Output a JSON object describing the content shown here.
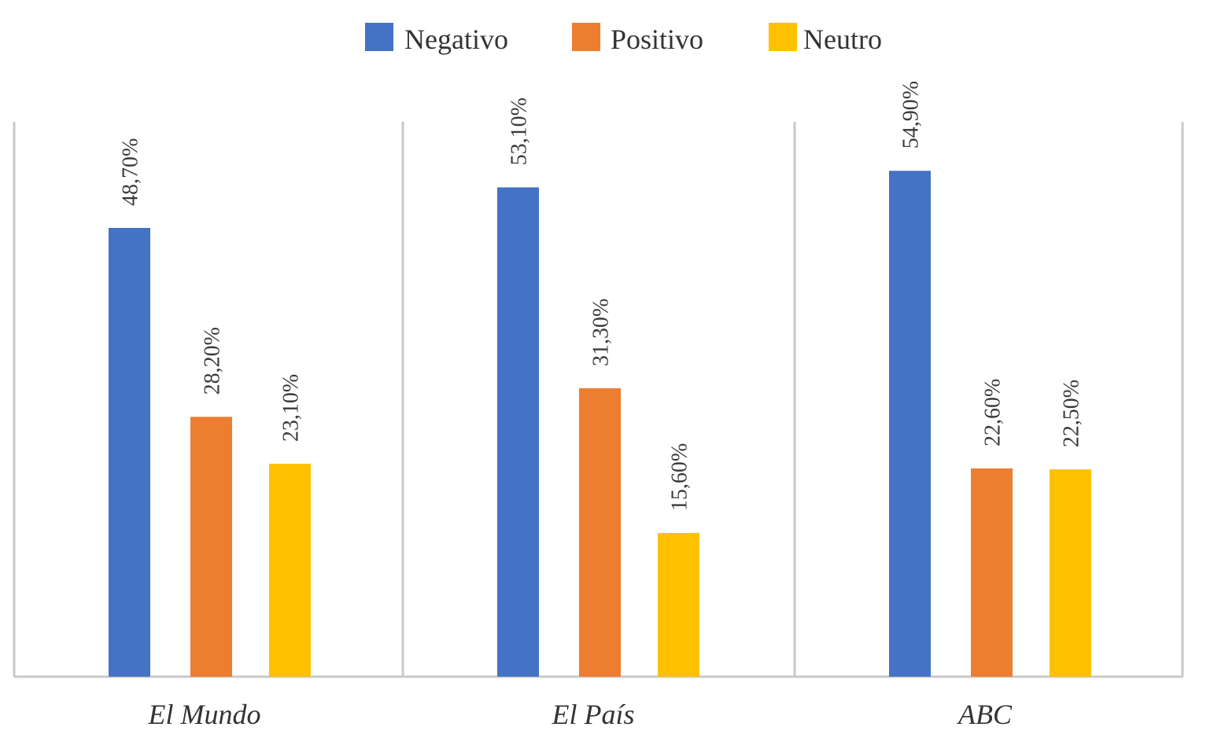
{
  "chart_data": {
    "type": "bar",
    "title": "",
    "xlabel": "",
    "ylabel": "",
    "ylim": [
      0,
      60
    ],
    "grid": false,
    "legend_position": "top",
    "categories": [
      "El Mundo",
      "El País",
      "ABC"
    ],
    "series": [
      {
        "name": "Negativo",
        "color": "#4472C4",
        "values": [
          48.7,
          53.1,
          54.9
        ],
        "labels": [
          "48,70%",
          "53,10%",
          "54,90%"
        ]
      },
      {
        "name": "Positivo",
        "color": "#ED7D31",
        "values": [
          28.2,
          31.3,
          22.6
        ],
        "labels": [
          "28,20%",
          "31,30%",
          "22,60%"
        ]
      },
      {
        "name": "Neutro",
        "color": "#FFC000",
        "values": [
          23.1,
          15.6,
          22.5
        ],
        "labels": [
          "23,10%",
          "15,60%",
          "22,50%"
        ]
      }
    ]
  }
}
